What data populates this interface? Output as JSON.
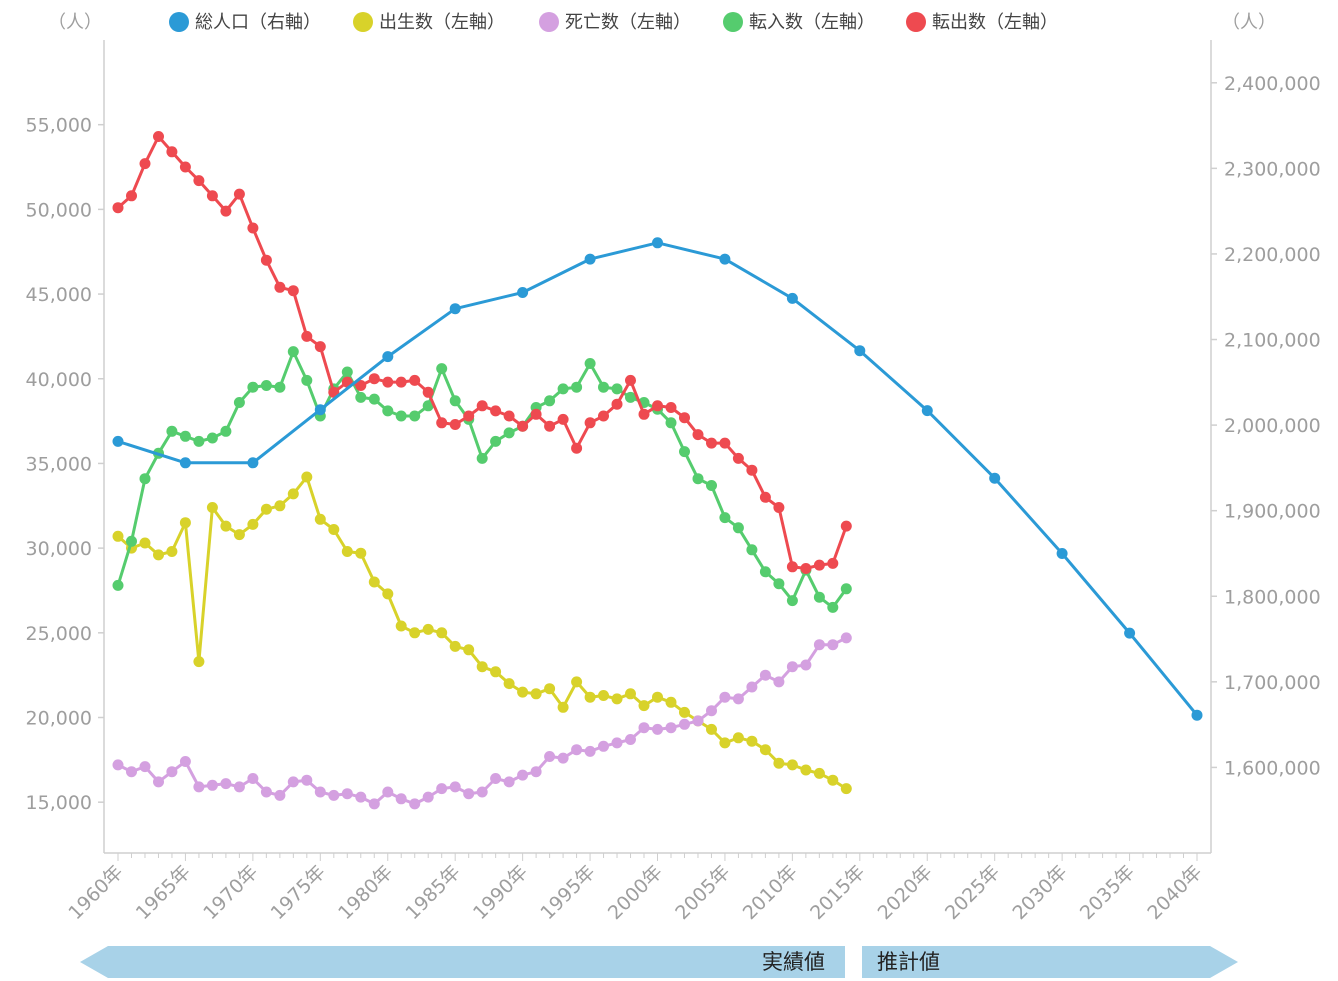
{
  "chart_data": {
    "type": "line",
    "left_unit": "（人）",
    "right_unit": "（人）",
    "left_ylim": [
      12000,
      60000
    ],
    "right_ylim": [
      1500000,
      2450000
    ],
    "left_ticks": [
      "15,000",
      "20,000",
      "25,000",
      "30,000",
      "35,000",
      "40,000",
      "45,000",
      "50,000",
      "55,000"
    ],
    "left_tick_values": [
      15000,
      20000,
      25000,
      30000,
      35000,
      40000,
      45000,
      50000,
      55000
    ],
    "right_ticks": [
      "1,600,000",
      "1,700,000",
      "1,800,000",
      "1,900,000",
      "2,000,000",
      "2,100,000",
      "2,200,000",
      "2,300,000",
      "2,400,000"
    ],
    "right_tick_values": [
      1600000,
      1700000,
      1800000,
      1900000,
      2000000,
      2100000,
      2200000,
      2300000,
      2400000
    ],
    "x_range": [
      1960,
      2040
    ],
    "x_ticks": [
      "1960年",
      "1965年",
      "1970年",
      "1975年",
      "1980年",
      "1985年",
      "1990年",
      "1995年",
      "2000年",
      "2005年",
      "2010年",
      "2015年",
      "2020年",
      "2025年",
      "2030年",
      "2035年",
      "2040年"
    ],
    "x_tick_values": [
      1960,
      1965,
      1970,
      1975,
      1980,
      1985,
      1990,
      1995,
      2000,
      2005,
      2010,
      2015,
      2020,
      2025,
      2030,
      2035,
      2040
    ],
    "legend_position": "top",
    "series": [
      {
        "name": "総人口（右軸）",
        "axis": "right",
        "color": "#2b9ad6",
        "x": [
          1960,
          1965,
          1970,
          1975,
          1980,
          1985,
          1990,
          1995,
          2000,
          2005,
          2010,
          2015,
          2020,
          2025,
          2030,
          2035,
          2040
        ],
        "values": [
          1981000,
          1956000,
          1956000,
          2018000,
          2080000,
          2136000,
          2155000,
          2194000,
          2213000,
          2194000,
          2148000,
          2087000,
          2017000,
          1938000,
          1850000,
          1757000,
          1661000
        ]
      },
      {
        "name": "出生数（左軸）",
        "axis": "left",
        "color": "#d8d22a",
        "x": [
          1960,
          1961,
          1962,
          1963,
          1964,
          1965,
          1966,
          1967,
          1968,
          1969,
          1970,
          1971,
          1972,
          1973,
          1974,
          1975,
          1976,
          1977,
          1978,
          1979,
          1980,
          1981,
          1982,
          1983,
          1984,
          1985,
          1986,
          1987,
          1988,
          1989,
          1990,
          1991,
          1992,
          1993,
          1994,
          1995,
          1996,
          1997,
          1998,
          1999,
          2000,
          2001,
          2002,
          2003,
          2004,
          2005,
          2006,
          2007,
          2008,
          2009,
          2010,
          2011,
          2012,
          2013,
          2014
        ],
        "values": [
          30700,
          30000,
          30300,
          29600,
          29800,
          31500,
          23300,
          32400,
          31300,
          30800,
          31400,
          32300,
          32500,
          33200,
          34200,
          31700,
          31100,
          29800,
          29700,
          28000,
          27300,
          25400,
          25000,
          25200,
          25000,
          24200,
          24000,
          23000,
          22700,
          22000,
          21500,
          21400,
          21700,
          20600,
          22100,
          21200,
          21300,
          21100,
          21400,
          20700,
          21200,
          20900,
          20300,
          19800,
          19300,
          18500,
          18800,
          18600,
          18100,
          17300,
          17200,
          16900,
          16700,
          16300,
          15800
        ]
      },
      {
        "name": "死亡数（左軸）",
        "axis": "left",
        "color": "#d4a0e0",
        "x": [
          1960,
          1961,
          1962,
          1963,
          1964,
          1965,
          1966,
          1967,
          1968,
          1969,
          1970,
          1971,
          1972,
          1973,
          1974,
          1975,
          1976,
          1977,
          1978,
          1979,
          1980,
          1981,
          1982,
          1983,
          1984,
          1985,
          1986,
          1987,
          1988,
          1989,
          1990,
          1991,
          1992,
          1993,
          1994,
          1995,
          1996,
          1997,
          1998,
          1999,
          2000,
          2001,
          2002,
          2003,
          2004,
          2005,
          2006,
          2007,
          2008,
          2009,
          2010,
          2011,
          2012,
          2013,
          2014
        ],
        "values": [
          17200,
          16800,
          17100,
          16200,
          16800,
          17400,
          15900,
          16000,
          16100,
          15900,
          16400,
          15600,
          15400,
          16200,
          16300,
          15600,
          15400,
          15500,
          15300,
          14900,
          15600,
          15200,
          14900,
          15300,
          15800,
          15900,
          15500,
          15600,
          16400,
          16200,
          16600,
          16800,
          17700,
          17600,
          18100,
          18000,
          18300,
          18500,
          18700,
          19400,
          19300,
          19400,
          19600,
          19800,
          20400,
          21200,
          21100,
          21800,
          22500,
          22100,
          23000,
          23100,
          24300,
          24300,
          24700
        ]
      },
      {
        "name": "転入数（左軸）",
        "axis": "left",
        "color": "#55cc6e",
        "x": [
          1960,
          1961,
          1962,
          1963,
          1964,
          1965,
          1966,
          1967,
          1968,
          1969,
          1970,
          1971,
          1972,
          1973,
          1974,
          1975,
          1976,
          1977,
          1978,
          1979,
          1980,
          1981,
          1982,
          1983,
          1984,
          1985,
          1986,
          1987,
          1988,
          1989,
          1990,
          1991,
          1992,
          1993,
          1994,
          1995,
          1996,
          1997,
          1998,
          1999,
          2000,
          2001,
          2002,
          2003,
          2004,
          2005,
          2006,
          2007,
          2008,
          2009,
          2010,
          2011,
          2012,
          2013,
          2014
        ],
        "values": [
          27800,
          30400,
          34100,
          35600,
          36900,
          36600,
          36300,
          36500,
          36900,
          38600,
          39500,
          39600,
          39500,
          41600,
          39900,
          37800,
          39400,
          40400,
          38900,
          38800,
          38100,
          37800,
          37800,
          38400,
          40600,
          38700,
          37600,
          35300,
          36300,
          36800,
          37200,
          38300,
          38700,
          39400,
          39500,
          40900,
          39500,
          39400,
          38900,
          38600,
          38200,
          37400,
          35700,
          34100,
          33700,
          31800,
          31200,
          29900,
          28600,
          27900,
          26900,
          28700,
          27100,
          26500,
          27600
        ]
      },
      {
        "name": "転出数（左軸）",
        "axis": "left",
        "color": "#ee4a50",
        "x": [
          1960,
          1961,
          1962,
          1963,
          1964,
          1965,
          1966,
          1967,
          1968,
          1969,
          1970,
          1971,
          1972,
          1973,
          1974,
          1975,
          1976,
          1977,
          1978,
          1979,
          1980,
          1981,
          1982,
          1983,
          1984,
          1985,
          1986,
          1987,
          1988,
          1989,
          1990,
          1991,
          1992,
          1993,
          1994,
          1995,
          1996,
          1997,
          1998,
          1999,
          2000,
          2001,
          2002,
          2003,
          2004,
          2005,
          2006,
          2007,
          2008,
          2009,
          2010,
          2011,
          2012,
          2013,
          2014
        ],
        "values": [
          50100,
          50800,
          52700,
          54300,
          53400,
          52500,
          51700,
          50800,
          49900,
          50900,
          48900,
          47000,
          45400,
          45200,
          42500,
          41900,
          39200,
          39800,
          39600,
          40000,
          39800,
          39800,
          39900,
          39200,
          37400,
          37300,
          37800,
          38400,
          38100,
          37800,
          37200,
          37900,
          37200,
          37600,
          35900,
          37400,
          37800,
          38500,
          39900,
          37900,
          38400,
          38300,
          37700,
          36700,
          36200,
          36200,
          35300,
          34600,
          33000,
          32400,
          28900,
          28800,
          29000,
          29100,
          31300
        ]
      }
    ]
  },
  "band": {
    "actual_label": "実績値",
    "projected_label": "推計値",
    "color": "#a8d2e8"
  }
}
